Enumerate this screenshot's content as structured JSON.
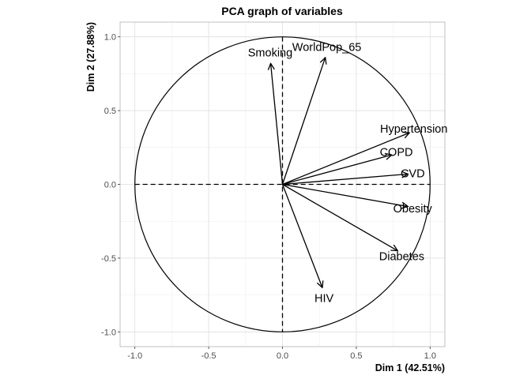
{
  "chart_data": {
    "type": "scatter",
    "title": "PCA graph of variables",
    "xlabel": "Dim 1 (42.51%)",
    "ylabel": "Dim 2 (27.88%)",
    "xlim": [
      -1.1,
      1.1
    ],
    "ylim": [
      -1.1,
      1.1
    ],
    "x_ticks": [
      -1.0,
      -0.5,
      0.0,
      0.5,
      1.0
    ],
    "y_ticks": [
      -1.0,
      -0.5,
      0.0,
      0.5,
      1.0
    ],
    "x_tick_labels": [
      "-1.0",
      "-0.5",
      "0.0",
      "0.5",
      "1.0"
    ],
    "y_tick_labels": [
      "-1.0",
      "-0.5",
      "0.0",
      "0.5",
      "1.0"
    ],
    "grid": true,
    "correlation_circle": true,
    "variables": [
      {
        "name": "Hypertension",
        "x": 0.86,
        "y": 0.35
      },
      {
        "name": "COPD",
        "x": 0.74,
        "y": 0.2
      },
      {
        "name": "CVD",
        "x": 0.85,
        "y": 0.07
      },
      {
        "name": "Obesity",
        "x": 0.85,
        "y": -0.15
      },
      {
        "name": "Diabetes",
        "x": 0.78,
        "y": -0.45
      },
      {
        "name": "HIV",
        "x": 0.27,
        "y": -0.7
      },
      {
        "name": "Smoking",
        "x": -0.08,
        "y": 0.82
      },
      {
        "name": "WorldPop_65",
        "x": 0.29,
        "y": 0.86
      }
    ]
  }
}
